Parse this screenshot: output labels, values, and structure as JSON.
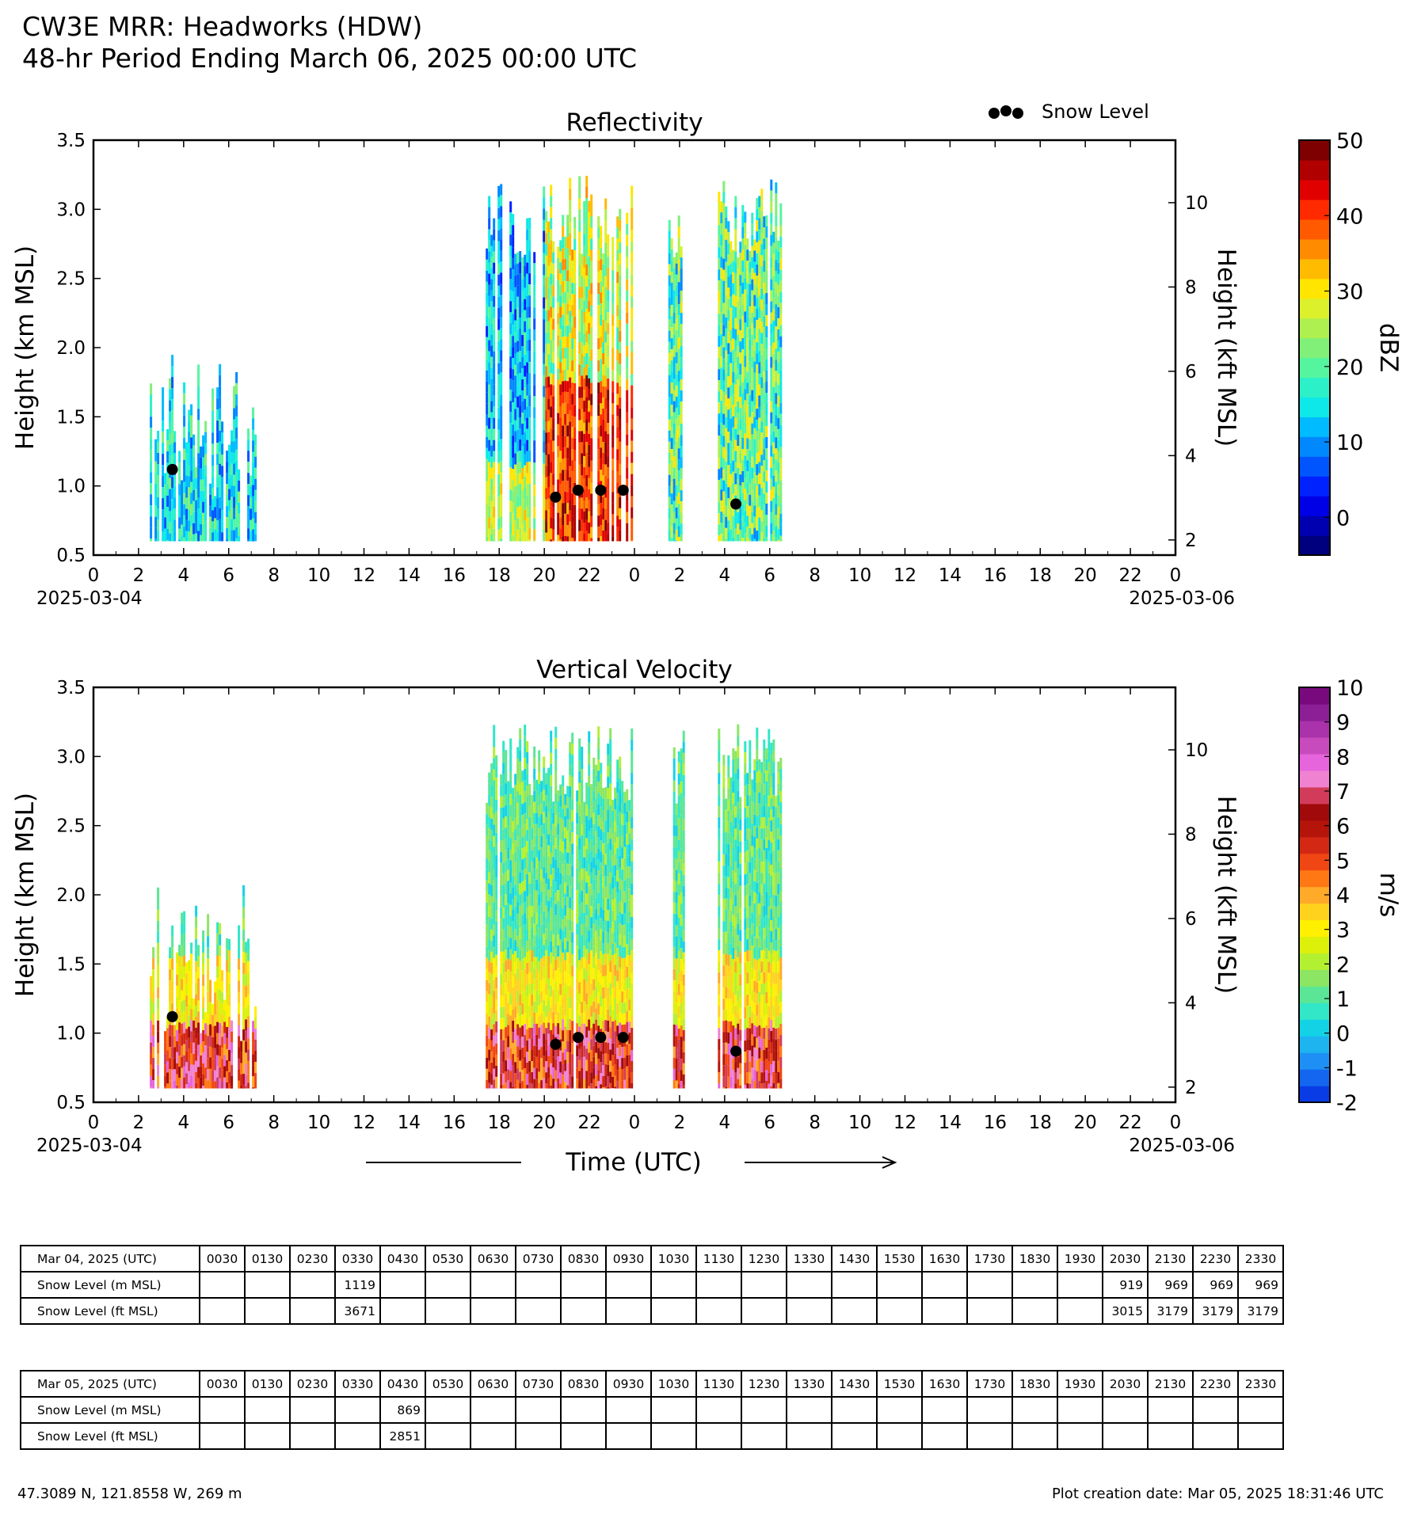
{
  "header": {
    "line1": "CW3E MRR: Headworks (HDW)",
    "line2": "48-hr Period Ending March 06, 2025 00:00 UTC"
  },
  "legend": {
    "snow_level": "Snow Level"
  },
  "x_axis": {
    "tick_labels": [
      "0",
      "2",
      "4",
      "6",
      "8",
      "10",
      "12",
      "14",
      "16",
      "18",
      "20",
      "22",
      "0",
      "2",
      "4",
      "6",
      "8",
      "10",
      "12",
      "14",
      "16",
      "18",
      "20",
      "22",
      "0"
    ],
    "start_date": "2025-03-04",
    "end_date": "2025-03-06",
    "label": "Time (UTC)"
  },
  "footer": {
    "location": "47.3089 N, 121.8558 W, 269 m",
    "creation": "Plot creation date: Mar 05, 2025 18:31:46 UTC"
  },
  "chart_data": [
    {
      "type": "heatmap",
      "title": "Reflectivity",
      "xlabel": "Time (UTC)",
      "ylabel": "Height (km MSL)",
      "ylabel_right": "Height (kft MSL)",
      "colorbar_label": "dBZ",
      "xlim": [
        0,
        48
      ],
      "ylim": [
        0.5,
        3.5
      ],
      "y_ticks": [
        "0.5",
        "1.0",
        "1.5",
        "2.0",
        "2.5",
        "3.0",
        "3.5"
      ],
      "y_ticks_right": [
        "2",
        "4",
        "6",
        "8",
        "10"
      ],
      "colorbar_ticks": [
        "0",
        "10",
        "20",
        "30",
        "40",
        "50"
      ],
      "colorbar_range": [
        -5,
        50
      ],
      "echo_periods_hours": [
        [
          2.5,
          7.2
        ],
        [
          17.4,
          23.9
        ],
        [
          25.5,
          26.2
        ],
        [
          27.7,
          30.5
        ]
      ],
      "snow_level": {
        "x_hours": [
          3.5,
          20.5,
          21.5,
          22.5,
          23.5,
          28.5
        ],
        "y_km": [
          1.119,
          0.919,
          0.969,
          0.969,
          0.969,
          0.869
        ]
      }
    },
    {
      "type": "heatmap",
      "title": "Vertical Velocity",
      "xlabel": "Time (UTC)",
      "ylabel": "Height (km MSL)",
      "ylabel_right": "Height (kft MSL)",
      "colorbar_label": "m/s",
      "xlim": [
        0,
        48
      ],
      "ylim": [
        0.5,
        3.5
      ],
      "y_ticks": [
        "0.5",
        "1.0",
        "1.5",
        "2.0",
        "2.5",
        "3.0",
        "3.5"
      ],
      "y_ticks_right": [
        "2",
        "4",
        "6",
        "8",
        "10"
      ],
      "colorbar_ticks": [
        "-2",
        "-1",
        "0",
        "1",
        "2",
        "3",
        "4",
        "5",
        "6",
        "7",
        "8",
        "9",
        "10"
      ],
      "colorbar_range": [
        -2,
        10
      ],
      "echo_periods_hours": [
        [
          2.5,
          7.2
        ],
        [
          17.4,
          23.9
        ],
        [
          25.5,
          26.2
        ],
        [
          27.7,
          30.5
        ]
      ],
      "snow_level": {
        "x_hours": [
          3.5,
          20.5,
          21.5,
          22.5,
          23.5,
          28.5
        ],
        "y_km": [
          1.119,
          0.919,
          0.969,
          0.969,
          0.969,
          0.869
        ]
      }
    }
  ],
  "tables": [
    {
      "date_label": "Mar 04, 2025 (UTC)",
      "times": [
        "0030",
        "0130",
        "0230",
        "0330",
        "0430",
        "0530",
        "0630",
        "0730",
        "0830",
        "0930",
        "1030",
        "1130",
        "1230",
        "1330",
        "1430",
        "1530",
        "1630",
        "1730",
        "1830",
        "1930",
        "2030",
        "2130",
        "2230",
        "2330"
      ],
      "m_label": "Snow Level (m MSL)",
      "ft_label": "Snow Level (ft MSL)",
      "m": [
        "",
        "",
        "",
        "1119",
        "",
        "",
        "",
        "",
        "",
        "",
        "",
        "",
        "",
        "",
        "",
        "",
        "",
        "",
        "",
        "",
        "919",
        "969",
        "969",
        "969"
      ],
      "ft": [
        "",
        "",
        "",
        "3671",
        "",
        "",
        "",
        "",
        "",
        "",
        "",
        "",
        "",
        "",
        "",
        "",
        "",
        "",
        "",
        "",
        "3015",
        "3179",
        "3179",
        "3179"
      ]
    },
    {
      "date_label": "Mar 05, 2025 (UTC)",
      "times": [
        "0030",
        "0130",
        "0230",
        "0330",
        "0430",
        "0530",
        "0630",
        "0730",
        "0830",
        "0930",
        "1030",
        "1130",
        "1230",
        "1330",
        "1430",
        "1530",
        "1630",
        "1730",
        "1830",
        "1930",
        "2030",
        "2130",
        "2230",
        "2330"
      ],
      "m_label": "Snow Level (m MSL)",
      "ft_label": "Snow Level (ft MSL)",
      "m": [
        "",
        "",
        "",
        "",
        "869",
        "",
        "",
        "",
        "",
        "",
        "",
        "",
        "",
        "",
        "",
        "",
        "",
        "",
        "",
        "",
        "",
        "",
        "",
        ""
      ],
      "ft": [
        "",
        "",
        "",
        "",
        "2851",
        "",
        "",
        "",
        "",
        "",
        "",
        "",
        "",
        "",
        "",
        "",
        "",
        "",
        "",
        "",
        "",
        "",
        "",
        ""
      ]
    }
  ]
}
